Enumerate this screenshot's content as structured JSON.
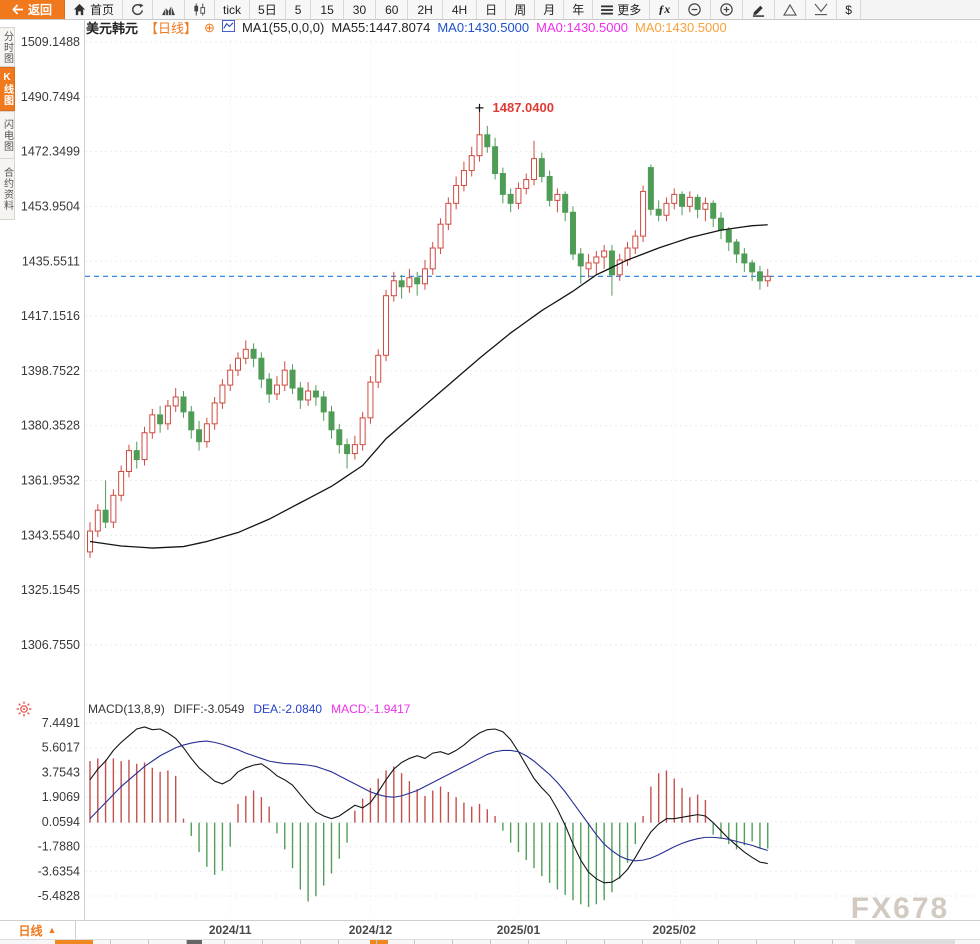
{
  "toolbar": {
    "items": [
      {
        "name": "back",
        "label": "返回",
        "icon": "back",
        "accent": true
      },
      {
        "name": "home",
        "label": "首页",
        "icon": "home"
      },
      {
        "name": "refresh",
        "icon": "refresh"
      },
      {
        "name": "chart-mountain",
        "icon": "mountain"
      },
      {
        "name": "chart-candle",
        "icon": "candle"
      },
      {
        "name": "tick",
        "label": "tick"
      },
      {
        "name": "5d",
        "label": "5日"
      },
      {
        "name": "m5",
        "label": "5",
        "num": true
      },
      {
        "name": "m15",
        "label": "15",
        "num": true
      },
      {
        "name": "m30",
        "label": "30",
        "num": true
      },
      {
        "name": "m60",
        "label": "60",
        "num": true
      },
      {
        "name": "h2",
        "label": "2H",
        "num": true
      },
      {
        "name": "h4",
        "label": "4H",
        "num": true
      },
      {
        "name": "day",
        "label": "日"
      },
      {
        "name": "week",
        "label": "周"
      },
      {
        "name": "month",
        "label": "月"
      },
      {
        "name": "year",
        "label": "年"
      },
      {
        "name": "more",
        "label": "更多",
        "icon": "menu"
      },
      {
        "name": "fx",
        "label": "ƒx",
        "fx": true
      },
      {
        "name": "zoom-out",
        "icon": "zoom-out"
      },
      {
        "name": "zoom-in",
        "icon": "zoom-in"
      },
      {
        "name": "draw",
        "icon": "pencil"
      },
      {
        "name": "triangle-up",
        "icon": "tri-up"
      },
      {
        "name": "check-down",
        "icon": "v-line"
      },
      {
        "name": "dollar",
        "label": "$"
      }
    ]
  },
  "header": {
    "symbol": "美元韩元",
    "period_tag": "【日线】",
    "plus": "⊕",
    "ma_settings": "MA1(55,0,0,0)",
    "ma55": "MA55:1447.8074",
    "ma0_blue": "MA0:1430.5000",
    "ma0_magenta": "MA0:1430.5000",
    "ma0_orange": "MA0:1430.5000"
  },
  "sidebar": {
    "tabs": [
      {
        "label": "分时图",
        "active": false
      },
      {
        "label": "K线图",
        "active": true
      },
      {
        "label": "闪电图",
        "active": false
      },
      {
        "label": "合约资料",
        "active": false
      }
    ]
  },
  "macd_header": {
    "title": "MACD(13,8,9)",
    "diff": "DIFF:-3.0549",
    "dea": "DEA:-2.0840",
    "macd": "MACD:-1.9417"
  },
  "bottom_bar": {
    "period_label": "日线",
    "arrow": "▲"
  },
  "watermark": "FX678",
  "annotations": {
    "high_label": "1487.0400",
    "current_price": 1430.5
  },
  "chart_data": {
    "type": "candlestick+macd",
    "title": "美元韩元 日线 (USD/KRW daily)",
    "price_ylim": [
      1306.755,
      1509.1488
    ],
    "price_ticks": [
      "1509.1488",
      "1490.7494",
      "1472.3499",
      "1453.9504",
      "1435.5511",
      "1417.1516",
      "1398.7522",
      "1380.3528",
      "1361.9532",
      "1343.5540",
      "1325.1545",
      "1306.7550"
    ],
    "macd_ylim": [
      -5.4828,
      7.4491
    ],
    "macd_ticks": [
      "7.4491",
      "5.6017",
      "3.7543",
      "1.9069",
      "0.0594",
      "-1.7880",
      "-3.6354",
      "-5.4828"
    ],
    "x_axis": {
      "labels": [
        "2024/11",
        "2024/12",
        "2025/01",
        "2025/02"
      ],
      "indices": [
        18,
        36,
        55,
        75
      ]
    },
    "candles": [
      [
        1338,
        1348,
        1336,
        1345
      ],
      [
        1345,
        1354,
        1343,
        1352
      ],
      [
        1352,
        1362,
        1346,
        1348
      ],
      [
        1348,
        1359,
        1346,
        1357
      ],
      [
        1357,
        1367,
        1355,
        1365
      ],
      [
        1365,
        1374,
        1363,
        1372
      ],
      [
        1372,
        1375,
        1366,
        1369
      ],
      [
        1369,
        1380,
        1367,
        1378
      ],
      [
        1378,
        1386,
        1376,
        1384
      ],
      [
        1384,
        1387,
        1378,
        1381
      ],
      [
        1381,
        1389,
        1379,
        1387
      ],
      [
        1387,
        1393,
        1385,
        1390
      ],
      [
        1390,
        1392,
        1383,
        1385
      ],
      [
        1385,
        1387,
        1376,
        1379
      ],
      [
        1379,
        1382,
        1372,
        1375
      ],
      [
        1375,
        1383,
        1373,
        1381
      ],
      [
        1381,
        1390,
        1379,
        1388
      ],
      [
        1388,
        1396,
        1386,
        1394
      ],
      [
        1394,
        1401,
        1392,
        1399
      ],
      [
        1399,
        1405,
        1397,
        1403
      ],
      [
        1403,
        1409,
        1401,
        1406
      ],
      [
        1406,
        1408,
        1400,
        1403
      ],
      [
        1403,
        1405,
        1393,
        1396
      ],
      [
        1396,
        1398,
        1388,
        1391
      ],
      [
        1391,
        1397,
        1389,
        1394
      ],
      [
        1394,
        1402,
        1392,
        1399
      ],
      [
        1399,
        1401,
        1391,
        1393
      ],
      [
        1393,
        1395,
        1386,
        1389
      ],
      [
        1389,
        1395,
        1387,
        1392
      ],
      [
        1392,
        1394,
        1387,
        1390
      ],
      [
        1390,
        1392,
        1382,
        1385
      ],
      [
        1385,
        1387,
        1376,
        1379
      ],
      [
        1379,
        1381,
        1371,
        1374
      ],
      [
        1374,
        1376,
        1366,
        1371
      ],
      [
        1371,
        1377,
        1369,
        1374
      ],
      [
        1374,
        1385,
        1372,
        1383
      ],
      [
        1383,
        1397,
        1381,
        1395
      ],
      [
        1395,
        1406,
        1393,
        1404
      ],
      [
        1404,
        1426,
        1402,
        1424
      ],
      [
        1424,
        1432,
        1422,
        1429
      ],
      [
        1429,
        1431,
        1423,
        1427
      ],
      [
        1427,
        1433,
        1425,
        1430
      ],
      [
        1430,
        1432,
        1424,
        1428
      ],
      [
        1428,
        1436,
        1426,
        1433
      ],
      [
        1433,
        1442,
        1431,
        1440
      ],
      [
        1440,
        1450,
        1438,
        1448
      ],
      [
        1448,
        1457,
        1446,
        1455
      ],
      [
        1455,
        1464,
        1453,
        1461
      ],
      [
        1461,
        1469,
        1459,
        1466
      ],
      [
        1466,
        1474,
        1464,
        1471
      ],
      [
        1471,
        1487.04,
        1469,
        1478
      ],
      [
        1478,
        1481,
        1472,
        1474
      ],
      [
        1474,
        1477,
        1463,
        1465
      ],
      [
        1465,
        1467,
        1455,
        1458
      ],
      [
        1458,
        1460,
        1452,
        1455
      ],
      [
        1455,
        1462,
        1453,
        1460
      ],
      [
        1460,
        1465,
        1458,
        1463
      ],
      [
        1463,
        1476,
        1461,
        1470
      ],
      [
        1470,
        1472,
        1462,
        1464
      ],
      [
        1464,
        1466,
        1454,
        1456
      ],
      [
        1456,
        1460,
        1452,
        1458
      ],
      [
        1458,
        1459,
        1449,
        1452
      ],
      [
        1452,
        1454,
        1436,
        1438
      ],
      [
        1438,
        1440,
        1428,
        1434
      ],
      [
        1433,
        1438,
        1430,
        1435
      ],
      [
        1435,
        1439,
        1431,
        1437
      ],
      [
        1437,
        1441,
        1433,
        1439
      ],
      [
        1439,
        1441,
        1424,
        1431
      ],
      [
        1431,
        1438,
        1429,
        1436
      ],
      [
        1436,
        1442,
        1434,
        1440
      ],
      [
        1440,
        1446,
        1438,
        1444
      ],
      [
        1444,
        1461,
        1442,
        1459
      ],
      [
        1467,
        1468,
        1451,
        1453
      ],
      [
        1453,
        1456,
        1449,
        1451
      ],
      [
        1451,
        1457,
        1449,
        1455
      ],
      [
        1455,
        1460,
        1453,
        1458
      ],
      [
        1458,
        1459,
        1451,
        1454
      ],
      [
        1454,
        1459,
        1452,
        1457
      ],
      [
        1457,
        1458,
        1450,
        1453
      ],
      [
        1453,
        1457,
        1449,
        1455
      ],
      [
        1455,
        1456,
        1447,
        1450
      ],
      [
        1450,
        1452,
        1443,
        1446
      ],
      [
        1446,
        1447,
        1439,
        1442
      ],
      [
        1442,
        1443,
        1435,
        1438
      ],
      [
        1438,
        1440,
        1432,
        1435
      ],
      [
        1435,
        1436,
        1429,
        1432
      ],
      [
        1432,
        1434,
        1426,
        1429
      ],
      [
        1429,
        1433,
        1427,
        1430.5
      ]
    ],
    "ma55_points": [
      [
        0,
        1341.5
      ],
      [
        4,
        1340
      ],
      [
        8,
        1339.3
      ],
      [
        12,
        1339.8
      ],
      [
        15,
        1341.5
      ],
      [
        19,
        1344.5
      ],
      [
        23,
        1349
      ],
      [
        27,
        1354.5
      ],
      [
        31,
        1360
      ],
      [
        35,
        1367
      ],
      [
        38,
        1376
      ],
      [
        42,
        1385
      ],
      [
        46,
        1394
      ],
      [
        50,
        1403
      ],
      [
        54,
        1411.5
      ],
      [
        58,
        1419
      ],
      [
        62,
        1425.5
      ],
      [
        65,
        1431
      ],
      [
        69,
        1436
      ],
      [
        73,
        1440
      ],
      [
        77,
        1443.5
      ],
      [
        81,
        1446
      ],
      [
        85,
        1447.5
      ],
      [
        87,
        1447.8
      ]
    ],
    "macd_hist": [
      4.6,
      4.8,
      4.7,
      4.8,
      4.6,
      4.7,
      4.4,
      4.5,
      4.1,
      3.8,
      3.9,
      3.5,
      0.3,
      -1.0,
      -2.2,
      -3.3,
      -3.9,
      -3.6,
      -1.8,
      1.4,
      2.0,
      2.4,
      1.9,
      1.2,
      -0.8,
      -2.0,
      -3.4,
      -5.0,
      -5.9,
      -5.5,
      -4.7,
      -3.8,
      -2.7,
      -1.5,
      0.9,
      1.8,
      2.6,
      3.3,
      3.9,
      4.2,
      3.7,
      3.1,
      2.5,
      2.0,
      2.4,
      2.7,
      2.3,
      1.9,
      1.5,
      1.2,
      1.4,
      1.0,
      0.5,
      -0.6,
      -1.5,
      -2.2,
      -2.8,
      -3.4,
      -4.0,
      -4.5,
      -5.0,
      -5.4,
      -5.8,
      -6.1,
      -6.3,
      -6.1,
      -5.8,
      -5.2,
      -4.2,
      -3.0,
      -1.6,
      0.5,
      2.7,
      3.7,
      3.9,
      3.3,
      2.6,
      1.9,
      2.1,
      1.7,
      -0.9,
      -1.2,
      -1.6,
      -2.0,
      -1.7,
      -1.4,
      -1.9,
      -1.9417
    ],
    "diff": [
      3.2,
      4.0,
      4.6,
      5.4,
      6.0,
      6.5,
      7.0,
      7.15,
      6.95,
      7.0,
      6.7,
      6.3,
      5.6,
      4.8,
      4.1,
      3.6,
      3.1,
      2.9,
      3.2,
      3.8,
      4.1,
      4.3,
      4.4,
      4.0,
      3.5,
      3.2,
      2.8,
      2.1,
      1.4,
      0.8,
      0.5,
      0.3,
      0.5,
      0.9,
      1.3,
      1.1,
      1.5,
      2.3,
      3.2,
      4.0,
      4.5,
      4.8,
      5.0,
      4.8,
      5.2,
      5.3,
      5.1,
      5.4,
      5.8,
      6.3,
      6.7,
      6.95,
      7.0,
      6.8,
      6.2,
      5.3,
      4.3,
      3.3,
      2.6,
      2.0,
      1.0,
      -0.2,
      -1.6,
      -2.8,
      -3.7,
      -4.2,
      -4.5,
      -4.45,
      -4.1,
      -3.5,
      -2.6,
      -1.6,
      -0.7,
      -0.1,
      0.3,
      0.3,
      0.4,
      0.5,
      0.6,
      0.5,
      0.0,
      -0.6,
      -1.2,
      -1.7,
      -2.2,
      -2.6,
      -2.95,
      -3.0549
    ],
    "dea": [
      0.3,
      0.9,
      1.5,
      2.1,
      2.7,
      3.2,
      3.7,
      4.2,
      4.6,
      5.0,
      5.3,
      5.6,
      5.8,
      5.95,
      6.05,
      6.1,
      6.0,
      5.85,
      5.65,
      5.45,
      5.2,
      5.0,
      4.8,
      4.6,
      4.5,
      4.42,
      4.4,
      4.35,
      4.3,
      4.2,
      4.0,
      3.8,
      3.5,
      3.2,
      2.9,
      2.6,
      2.3,
      2.1,
      1.95,
      1.9,
      2.0,
      2.2,
      2.4,
      2.7,
      3.0,
      3.3,
      3.6,
      3.9,
      4.2,
      4.5,
      4.8,
      5.1,
      5.3,
      5.4,
      5.4,
      5.3,
      5.0,
      4.6,
      4.1,
      3.6,
      3.0,
      2.3,
      1.5,
      0.7,
      -0.1,
      -0.9,
      -1.6,
      -2.1,
      -2.5,
      -2.75,
      -2.85,
      -2.8,
      -2.65,
      -2.4,
      -2.1,
      -1.8,
      -1.55,
      -1.35,
      -1.2,
      -1.1,
      -1.1,
      -1.15,
      -1.25,
      -1.4,
      -1.55,
      -1.7,
      -1.9,
      -2.084
    ],
    "colors": {
      "accent": "#f0781d",
      "up": "#cf4a41",
      "down": "#4f9c57",
      "ma55": "#141414",
      "diff": "#141414",
      "dea": "#262f93",
      "hist_pos": "#c4504b",
      "hist_neg": "#539d5b",
      "dashed_price_line": "#1f7cdb",
      "high_label": "#e03a34",
      "watermark": "#c7beb2",
      "grid": "#e9ebee"
    }
  }
}
